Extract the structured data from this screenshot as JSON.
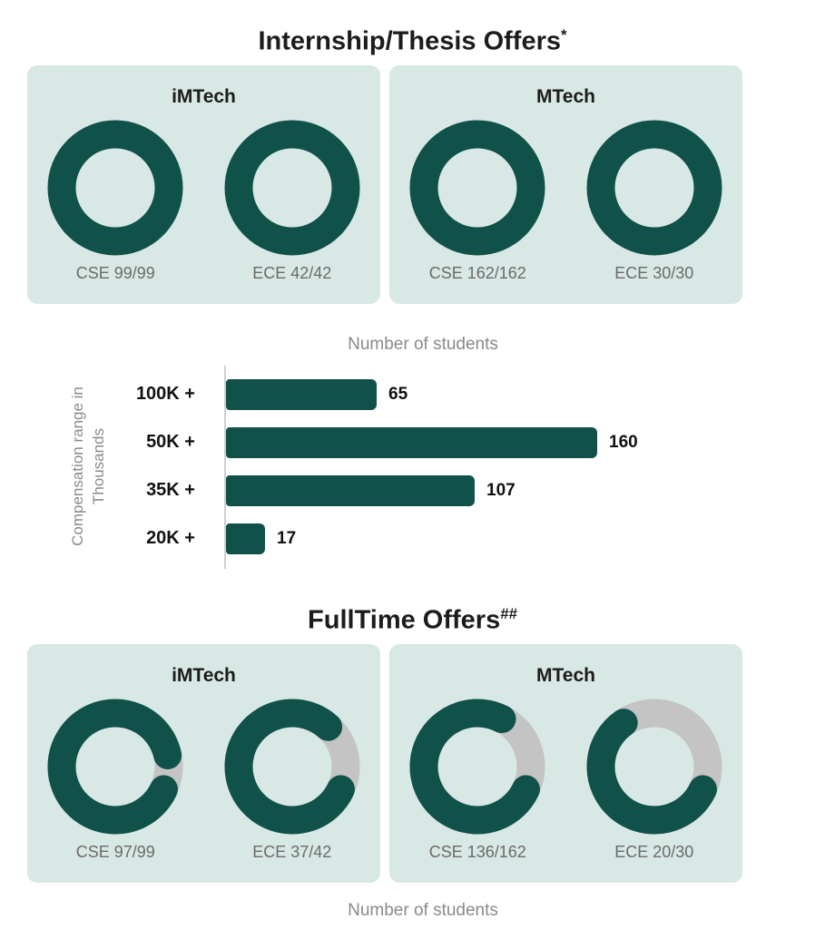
{
  "colors": {
    "teal": "#10514A",
    "panel_bg": "#D8E8E5",
    "remaining_gray": "#C3C4C3",
    "label_gray": "#6B6B6B",
    "muted_gray": "#8A8A8A",
    "text_dark": "#1C1C1C",
    "axis_gray": "#CFCFCF"
  },
  "display": {
    "internship_title": "Internship/Thesis Offers",
    "internship_sup": "*",
    "fulltime_title": "FullTime Offers",
    "fulltime_sup": "##",
    "bar_title": "Number of students",
    "ylabel_line1": "Compensation range in",
    "ylabel_line2": "Thousands",
    "footer_caption": "Number of students"
  },
  "chart_data": [
    {
      "type": "pie",
      "variant": "donut-group",
      "title": "Internship/Thesis Offers*",
      "groups": [
        {
          "panel": "iMTech",
          "donuts": [
            {
              "label": "CSE 99/99",
              "achieved": 99,
              "total": 99
            },
            {
              "label": "ECE 42/42",
              "achieved": 42,
              "total": 42
            }
          ]
        },
        {
          "panel": "MTech",
          "donuts": [
            {
              "label": "CSE 162/162",
              "achieved": 162,
              "total": 162
            },
            {
              "label": "ECE 30/30",
              "achieved": 30,
              "total": 30
            }
          ]
        }
      ],
      "colors": {
        "achieved": "#10514A",
        "remaining": "#C3C4C3"
      },
      "legend": "none"
    },
    {
      "type": "bar",
      "orientation": "horizontal",
      "title": "Number of students",
      "ylabel": "Compensation range in Thousands",
      "xlabel": "",
      "categories": [
        "100K +",
        "50K +",
        "35K +",
        "20K +"
      ],
      "values": [
        65,
        160,
        107,
        17
      ],
      "xlim": [
        0,
        170
      ],
      "grid": false,
      "bar_color": "#10514A",
      "value_labels": true
    },
    {
      "type": "pie",
      "variant": "donut-group",
      "title": "FullTime Offers##",
      "caption_below": "Number of students",
      "groups": [
        {
          "panel": "iMTech",
          "donuts": [
            {
              "label": "CSE 97/99",
              "achieved": 97,
              "total": 99
            },
            {
              "label": "ECE 37/42",
              "achieved": 37,
              "total": 42
            }
          ]
        },
        {
          "panel": "MTech",
          "donuts": [
            {
              "label": "CSE 136/162",
              "achieved": 136,
              "total": 162
            },
            {
              "label": "ECE 20/30",
              "achieved": 20,
              "total": 30
            }
          ]
        }
      ],
      "colors": {
        "achieved": "#10514A",
        "remaining": "#C3C4C3"
      },
      "legend": "none"
    }
  ]
}
